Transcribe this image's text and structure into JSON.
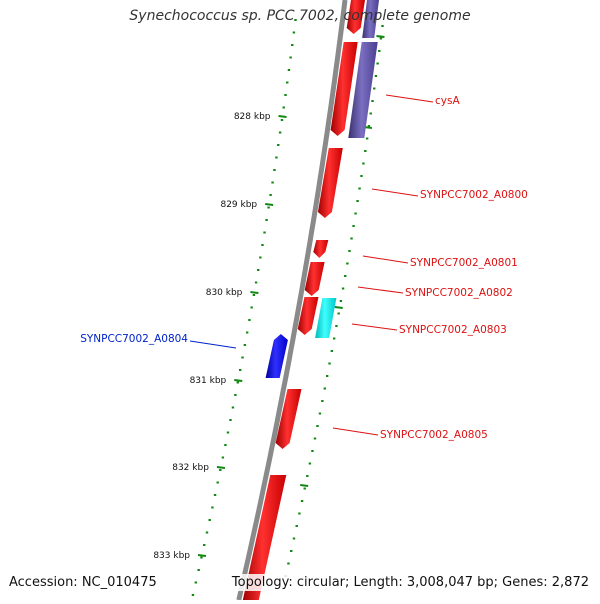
{
  "title": {
    "organism": "Synechococcus sp.",
    "rest": "PCC 7002, complete genome"
  },
  "footer": {
    "accession": "Accession: NC_010475",
    "topology": "Topology: circular; Length: 3,008,047 bp; Genes: 2,872"
  },
  "ruler": [
    {
      "label": "828 kbp"
    },
    {
      "label": "829 kbp"
    },
    {
      "label": "830 kbp"
    },
    {
      "label": "831 kbp"
    },
    {
      "label": "832 kbp"
    },
    {
      "label": "833 kbp"
    }
  ],
  "genes": [
    {
      "label": "cysA",
      "strand": "forward",
      "color": "#dd1111"
    },
    {
      "label": "SYNPCC7002_A0800",
      "strand": "forward",
      "color": "#dd1111"
    },
    {
      "label": "SYNPCC7002_A0801",
      "strand": "forward",
      "color": "#dd1111"
    },
    {
      "label": "SYNPCC7002_A0802",
      "strand": "forward",
      "color": "#dd1111"
    },
    {
      "label": "SYNPCC7002_A0803",
      "strand": "forward",
      "color": "#dd1111"
    },
    {
      "label": "SYNPCC7002_A0804",
      "strand": "reverse",
      "color": "#0022cc"
    },
    {
      "label": "SYNPCC7002_A0805",
      "strand": "forward",
      "color": "#dd1111"
    }
  ],
  "colors": {
    "forward_cds": "#ff1a1a",
    "reverse_cds": "#1a1aff",
    "rna_feature": "#22e6e6",
    "other_feature": "#5a4fa0",
    "backbone": "#8a8a8a",
    "ruler_ticks": "#118811"
  }
}
